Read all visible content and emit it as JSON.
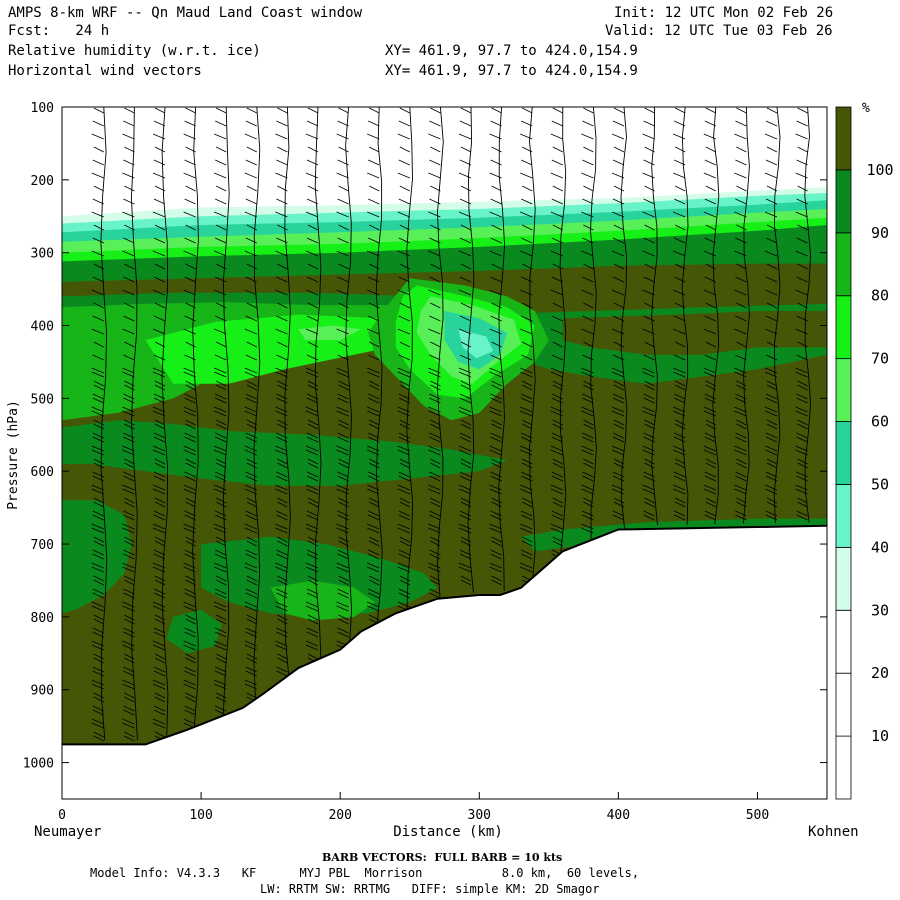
{
  "header": {
    "title": "AMPS 8-km WRF -- Qn Maud Land Coast window",
    "fcst": "Fcst:   24 h",
    "init": "Init: 12 UTC Mon 02 Feb 26",
    "valid": "Valid: 12 UTC Tue 03 Feb 26",
    "field1": "Relative humidity (w.r.t. ice)",
    "field2": "Horizontal wind vectors",
    "xy1": "XY= 461.9, 97.7 to 424.0,154.9",
    "xy2": "XY= 461.9, 97.7 to 424.0,154.9"
  },
  "footer": {
    "barb": "BARB VECTORS:  FULL BARB = 10 kts",
    "model_info": "Model Info: V4.3.3   KF      MYJ PBL  Morrison           8.0 km,  60 levels,",
    "physics": "LW: RRTM SW: RRTMG   DIFF: simple KM: 2D Smagor"
  },
  "chart_data": {
    "type": "heatmap",
    "title": "Relative humidity (w.r.t. ice)",
    "overlay": "Horizontal wind vectors",
    "xlabel": "Distance (km)",
    "ylabel": "Pressure (hPa)",
    "x_start_label": "Neumayer",
    "x_end_label": "Kohnen",
    "xlim": [
      0,
      550
    ],
    "ylim": [
      1050,
      100
    ],
    "x_ticks": [
      0,
      100,
      200,
      300,
      400,
      500
    ],
    "y_ticks": [
      100,
      200,
      300,
      400,
      500,
      600,
      700,
      800,
      900,
      1000
    ],
    "colorbar": {
      "unit": "%",
      "levels": [
        10,
        20,
        30,
        40,
        50,
        60,
        70,
        80,
        90,
        100
      ],
      "colors": [
        "#ffffff",
        "#ffffff",
        "#ffffff",
        "#d3fde8",
        "#68f3c8",
        "#28d49c",
        "#58ef58",
        "#16f016",
        "#18b518",
        "#0a8a1e",
        "#465607"
      ]
    },
    "terrain": {
      "x": [
        0,
        60,
        90,
        130,
        145,
        170,
        200,
        215,
        240,
        270,
        300,
        315,
        330,
        345,
        360,
        400,
        550
      ],
      "pressure": [
        975,
        975,
        955,
        925,
        905,
        870,
        845,
        820,
        795,
        775,
        770,
        770,
        760,
        735,
        710,
        680,
        675
      ]
    },
    "rh_layers": [
      {
        "level": 30,
        "x": [
          0,
          100,
          200,
          300,
          400,
          500,
          550
        ],
        "top_pressure": [
          250,
          238,
          235,
          230,
          225,
          215,
          210
        ]
      },
      {
        "level": 90,
        "x": [
          0,
          100,
          200,
          300,
          400,
          500,
          550
        ],
        "top_pressure": [
          345,
          340,
          330,
          325,
          320,
          315,
          315
        ]
      }
    ]
  }
}
